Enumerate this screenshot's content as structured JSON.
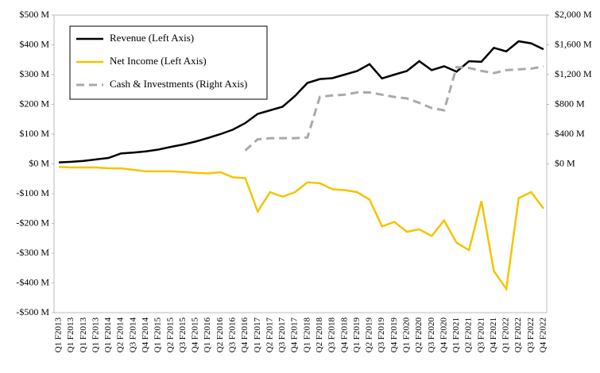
{
  "chart_data": {
    "type": "line",
    "categories": [
      "Q1 F2013",
      "Q1 F2013",
      "Q1 F2013",
      "Q1 F2013",
      "Q1 F2014",
      "Q2 F2014",
      "Q3 F2014",
      "Q4 F2014",
      "Q1 F2015",
      "Q2 F2015",
      "Q3 F2015",
      "Q4 F2015",
      "Q1 F2016",
      "Q2 F2016",
      "Q3 F2016",
      "Q4 F2016",
      "Q1 F2017",
      "Q2 F2017",
      "Q3 F2017",
      "Q4 F2017",
      "Q1 F2018",
      "Q2 F2018",
      "Q3 F2018",
      "Q4 F2018",
      "Q1 F2019",
      "Q2 F2019",
      "Q3 F2019",
      "Q4 F2019",
      "Q1 F2020",
      "Q2 F2020",
      "Q3 F2020",
      "Q4 F2020",
      "Q1 F2021",
      "Q2 F2021",
      "Q3 F2021",
      "Q4 F2021",
      "Q1 F2022",
      "Q2 F2022",
      "Q3 F2022",
      "Q4 F2022"
    ],
    "series": [
      {
        "name": "Revenue (Left Axis)",
        "color": "#000000",
        "dash": false,
        "values": [
          5,
          7,
          10,
          15,
          20,
          35,
          38,
          42,
          48,
          57,
          65,
          75,
          87,
          100,
          115,
          137,
          168,
          180,
          192,
          228,
          272,
          285,
          288,
          300,
          312,
          335,
          287,
          300,
          312,
          345,
          315,
          328,
          310,
          345,
          343,
          390,
          378,
          412,
          405,
          385
        ]
      },
      {
        "name": "Net Income (Left Axis)",
        "color": "#f5c400",
        "dash": false,
        "values": [
          -10,
          -12,
          -12,
          -12,
          -15,
          -15,
          -20,
          -25,
          -25,
          -25,
          -27,
          -30,
          -32,
          -28,
          -45,
          -48,
          -160,
          -95,
          -110,
          -95,
          -62,
          -65,
          -85,
          -88,
          -95,
          -120,
          -210,
          -195,
          -228,
          -220,
          -242,
          -190,
          -265,
          -290,
          -125,
          -360,
          -420,
          -115,
          -95,
          -150
        ]
      },
      {
        "name": "Cash & Investments (Right Axis)",
        "color": "#aaaaaa",
        "dash": true,
        "axis": "y2",
        "values": [
          null,
          null,
          null,
          null,
          null,
          null,
          null,
          null,
          null,
          null,
          null,
          null,
          null,
          null,
          null,
          180,
          330,
          345,
          345,
          345,
          355,
          900,
          920,
          930,
          960,
          960,
          930,
          900,
          880,
          820,
          750,
          720,
          1300,
          1290,
          1250,
          1220,
          1260,
          1270,
          1280,
          1310
        ]
      }
    ],
    "ylim": [
      -500,
      500
    ],
    "yticks": [
      {
        "value": -500,
        "label": "-$500 M"
      },
      {
        "value": -400,
        "label": "-$400 M"
      },
      {
        "value": -300,
        "label": "-$300 M"
      },
      {
        "value": -200,
        "label": "-$200 M"
      },
      {
        "value": -100,
        "label": "-$100 M"
      },
      {
        "value": 0,
        "label": "$0 M"
      },
      {
        "value": 100,
        "label": "$100 M"
      },
      {
        "value": 200,
        "label": "$200 M"
      },
      {
        "value": 300,
        "label": "$300 M"
      },
      {
        "value": 400,
        "label": "$400 M"
      },
      {
        "value": 500,
        "label": "$500 M"
      }
    ],
    "y2lim": [
      -2000,
      2000
    ],
    "y2ticks": [
      {
        "value": 0,
        "label": "$0 M"
      },
      {
        "value": 400,
        "label": "$400 M"
      },
      {
        "value": 800,
        "label": "$800 M"
      },
      {
        "value": 1200,
        "label": "$1,200 M"
      },
      {
        "value": 1600,
        "label": "$1,600 M"
      },
      {
        "value": 2000,
        "label": "$2,000 M"
      }
    ],
    "legend": "upper left",
    "grid": false
  }
}
